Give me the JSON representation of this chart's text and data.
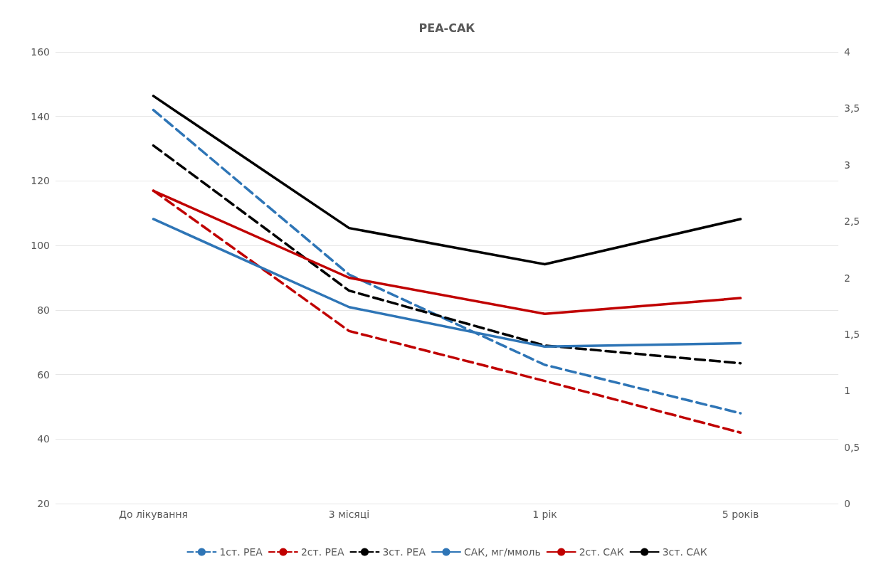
{
  "chart_data": {
    "type": "line",
    "title": "РЕА-САК",
    "categories": [
      "До лікування",
      "3 місяці",
      "1 рік",
      "5 років"
    ],
    "series": [
      {
        "name": "1ст. РЕА",
        "color": "#2e75b6",
        "line_style": "dashed",
        "values": [
          142,
          91,
          63,
          48
        ]
      },
      {
        "name": "2ст. РЕА",
        "color": "#c00000",
        "line_style": "dashed",
        "values": [
          117,
          73.5,
          58,
          42
        ]
      },
      {
        "name": "3ст. РЕА",
        "color": "#000000",
        "line_style": "dashed",
        "values": [
          131,
          86,
          69,
          63.5
        ]
      },
      {
        "name": "САК, мг/ммоль",
        "color": "#2e75b6",
        "line_style": "solid",
        "axis": "y2",
        "values": [
          2.52,
          1.74,
          1.39,
          1.42
        ]
      },
      {
        "name": "2ст. САК",
        "color": "#c00000",
        "line_style": "solid",
        "axis": "y2",
        "values": [
          2.77,
          2.0,
          1.68,
          1.82
        ]
      },
      {
        "name": "3ст. САК",
        "color": "#000000",
        "line_style": "solid",
        "axis": "y2",
        "values": [
          3.61,
          2.44,
          2.12,
          2.52
        ]
      }
    ],
    "ylim": [
      20,
      160
    ],
    "yticks": [
      20,
      40,
      60,
      80,
      100,
      120,
      140,
      160
    ],
    "y2lim": [
      0,
      4
    ],
    "y2ticks": [
      {
        "value": 0,
        "label": "0"
      },
      {
        "value": 0.5,
        "label": "0,5"
      },
      {
        "value": 1,
        "label": "1"
      },
      {
        "value": 1.5,
        "label": "1,5"
      },
      {
        "value": 2,
        "label": "2"
      },
      {
        "value": 2.5,
        "label": "2,5"
      },
      {
        "value": 3,
        "label": "3"
      },
      {
        "value": 3.5,
        "label": "3,5"
      },
      {
        "value": 4,
        "label": "4"
      }
    ],
    "grid": "y",
    "legend": "bottom",
    "marker": "none"
  }
}
